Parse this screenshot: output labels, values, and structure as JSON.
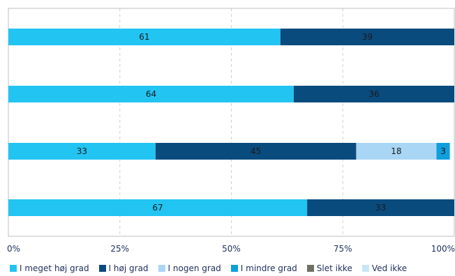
{
  "chart_data": {
    "type": "bar",
    "orientation": "horizontal",
    "stacked": true,
    "percent": true,
    "xlim": [
      0,
      100
    ],
    "x_ticks": [
      "0%",
      "25%",
      "50%",
      "75%",
      "100%"
    ],
    "grid": true,
    "legend_position": "bottom",
    "series": [
      {
        "name": "I meget høj grad",
        "color": "#22c4f2",
        "values": [
          61,
          64,
          33,
          67
        ]
      },
      {
        "name": "I høj grad",
        "color": "#0a4b7e",
        "values": [
          39,
          36,
          45,
          33
        ]
      },
      {
        "name": "I nogen grad",
        "color": "#a9d6f5",
        "values": [
          0,
          0,
          18,
          0
        ]
      },
      {
        "name": "I mindre grad",
        "color": "#0e9fdc",
        "values": [
          0,
          0,
          3,
          0
        ]
      },
      {
        "name": "Slet ikke",
        "color": "#6f7167",
        "values": [
          0,
          0,
          0,
          0
        ]
      },
      {
        "name": "Ved ikke",
        "color": "#c8e6f8",
        "values": [
          0,
          0,
          0,
          0
        ]
      }
    ],
    "data_labels": [
      [
        "61",
        "39",
        "",
        "",
        "",
        ""
      ],
      [
        "64",
        "36",
        "",
        "",
        "",
        ""
      ],
      [
        "33",
        "45",
        "18",
        "3",
        "",
        ""
      ],
      [
        "67",
        "33",
        "",
        "",
        "",
        ""
      ]
    ]
  }
}
